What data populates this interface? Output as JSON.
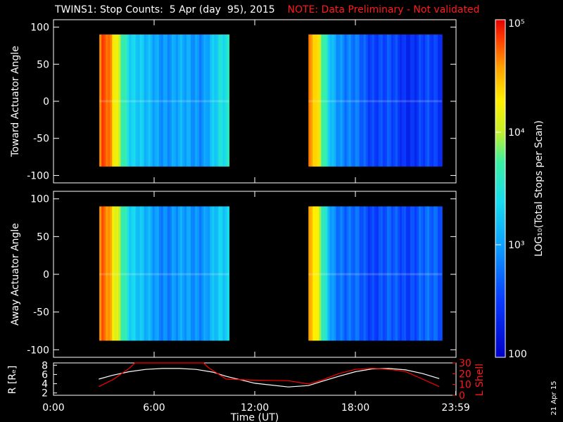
{
  "title": {
    "main": "TWINS1: Stop Counts:  5 Apr (day  95), 2015",
    "note": "NOTE: Data Preliminary - Not validated"
  },
  "footer_date": "21 Apr 15",
  "colors": {
    "background": "#000000",
    "axes": "#ffffff",
    "note": "#ff1a1a",
    "r_line": "#ffffff",
    "lshell_line": "#ff0000"
  },
  "chart_data": [
    {
      "type": "heatmap",
      "panel": "toward",
      "ylabel": "Toward Actuator Angle",
      "xlim": [
        0,
        24
      ],
      "ylim": [
        -110,
        110
      ],
      "yticks": [
        100,
        50,
        0,
        -50,
        -100
      ],
      "data_blocks": [
        {
          "time_range": [
            "2:44",
            "10:28"
          ],
          "angle_range": [
            -88,
            90
          ]
        },
        {
          "time_range": [
            "15:12",
            "23:10"
          ],
          "angle_range": [
            -88,
            90
          ]
        }
      ],
      "log10_counts_profile": {
        "hour": [
          2.75,
          3.1,
          3.6,
          4.0,
          4.6,
          5.5,
          7.0,
          9.0,
          10.4,
          15.2,
          15.6,
          16.0,
          16.6,
          17.5,
          19.0,
          21.0,
          23.1
        ],
        "value": [
          4.6,
          4.8,
          4.3,
          3.9,
          3.4,
          3.1,
          3.0,
          3.0,
          3.5,
          4.6,
          4.4,
          3.8,
          3.2,
          2.8,
          2.6,
          2.45,
          2.5
        ]
      }
    },
    {
      "type": "heatmap",
      "panel": "away",
      "ylabel": "Away Actuator Angle",
      "xlim": [
        0,
        24
      ],
      "ylim": [
        -110,
        110
      ],
      "yticks": [
        100,
        50,
        0,
        -50,
        -100
      ],
      "data_blocks": [
        {
          "time_range": [
            "2:44",
            "10:28"
          ],
          "angle_range": [
            -88,
            90
          ]
        },
        {
          "time_range": [
            "15:12",
            "23:10"
          ],
          "angle_range": [
            -88,
            90
          ]
        }
      ],
      "log10_counts_profile": {
        "hour": [
          2.75,
          3.1,
          3.6,
          4.0,
          4.6,
          5.5,
          7.0,
          9.0,
          10.4,
          15.2,
          15.6,
          16.0,
          16.6,
          17.5,
          19.0,
          21.0,
          23.1
        ],
        "value": [
          4.6,
          4.7,
          4.2,
          3.9,
          3.4,
          3.05,
          2.9,
          3.0,
          3.3,
          4.5,
          4.3,
          3.7,
          3.0,
          2.7,
          2.6,
          2.6,
          2.7
        ]
      }
    },
    {
      "type": "colorbar",
      "label": "LOG₁₀(Total Stops per Scan)",
      "scale": "log",
      "range": [
        100,
        100000
      ],
      "tick_labels": [
        "10⁵",
        "10⁴",
        "10³",
        "100"
      ],
      "tick_values": [
        100000,
        10000,
        1000,
        100
      ]
    },
    {
      "type": "line",
      "panel": "orbit",
      "xlabel": "Time (UT)",
      "xlim": [
        0,
        24
      ],
      "xtick_labels": [
        "0:00",
        "6:00",
        "12:00",
        "18:00",
        "23:59"
      ],
      "left_axis": {
        "label": "R [Rₑ]",
        "range": [
          1.5,
          8.5
        ],
        "ticks": [
          8,
          6,
          4,
          2
        ]
      },
      "right_axis": {
        "label": "L Shell",
        "range": [
          0,
          30
        ],
        "ticks": [
          30,
          20,
          10,
          0
        ]
      },
      "series": [
        {
          "name": "R",
          "axis": "left",
          "x": [
            2.7,
            3.5,
            4.5,
            5.5,
            6.5,
            7.5,
            8.5,
            9.5,
            10.3,
            12.0,
            14.0,
            15.2,
            16.0,
            17.0,
            18.0,
            19.0,
            20.0,
            21.0,
            22.0,
            23.0
          ],
          "y": [
            5.0,
            5.8,
            6.6,
            7.1,
            7.3,
            7.3,
            7.1,
            6.5,
            5.6,
            4.1,
            3.3,
            3.6,
            4.5,
            5.6,
            6.6,
            7.2,
            7.3,
            7.0,
            6.2,
            5.1
          ]
        },
        {
          "name": "L Shell",
          "axis": "right",
          "x": [
            2.7,
            3.6,
            4.6,
            4.85,
            8.95,
            9.2,
            10.3,
            12.0,
            14.0,
            15.2,
            16.0,
            17.0,
            18.0,
            19.0,
            20.0,
            21.0,
            22.0,
            23.0
          ],
          "y": [
            8.0,
            15.0,
            26.0,
            30.0,
            30.0,
            26.0,
            15.0,
            14.0,
            13.5,
            10.5,
            14.0,
            20.0,
            24.0,
            25.0,
            24.0,
            22.0,
            15.0,
            8.0
          ]
        }
      ]
    }
  ]
}
